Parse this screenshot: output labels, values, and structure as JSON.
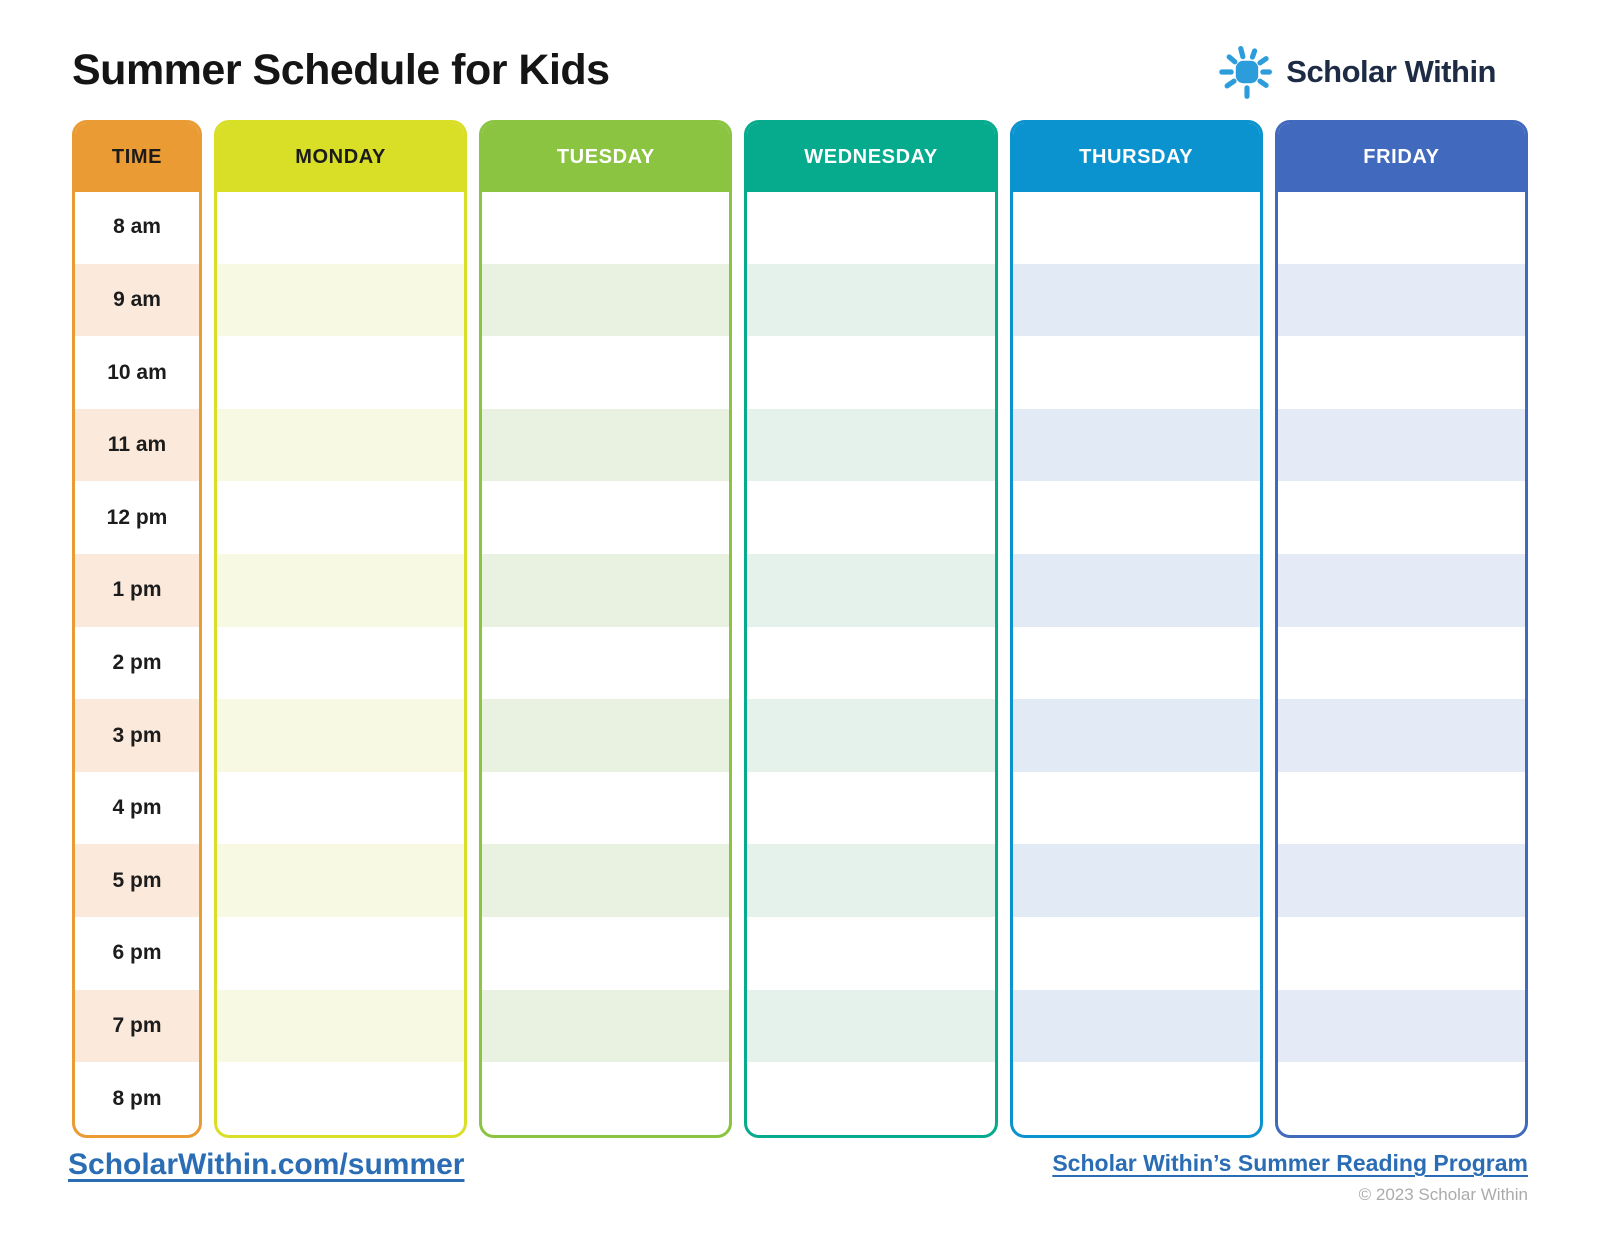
{
  "page": {
    "title": "Summer Schedule for Kids"
  },
  "brand": {
    "name": "Scholar Within",
    "icon": "sun-icon",
    "icon_color": "#2d9cdb",
    "text_color": "#1d2b45"
  },
  "schedule": {
    "time_column": {
      "header": "TIME",
      "header_bg": "#ea9b33",
      "header_text": "#1b1b1b",
      "stripe": "#fbeadc",
      "times": [
        "8 am",
        "9 am",
        "10 am",
        "11 am",
        "12 pm",
        "1 pm",
        "2 pm",
        "3 pm",
        "4 pm",
        "5 pm",
        "6 pm",
        "7 pm",
        "8 pm"
      ]
    },
    "days": [
      {
        "label": "MONDAY",
        "color": "#d9de27",
        "stripe": "#f8f9e2",
        "header_text": "#1b1b1b"
      },
      {
        "label": "TUESDAY",
        "color": "#8ac441",
        "stripe": "#e9f2e1",
        "header_text": "#ffffff"
      },
      {
        "label": "WEDNESDAY",
        "color": "#05ab8c",
        "stripe": "#e5f1eb",
        "header_text": "#ffffff"
      },
      {
        "label": "THURSDAY",
        "color": "#0a93cf",
        "stripe": "#e2eaf6",
        "header_text": "#ffffff"
      },
      {
        "label": "FRIDAY",
        "color": "#4169be",
        "stripe": "#e4eaf6",
        "header_text": "#ffffff"
      }
    ],
    "rows_per_day": 13
  },
  "footer": {
    "left_link": "ScholarWithin.com/summer",
    "right_link": "Scholar Within’s Summer Reading Program",
    "copyright": "© 2023 Scholar Within",
    "link_color": "#2a6db5"
  }
}
